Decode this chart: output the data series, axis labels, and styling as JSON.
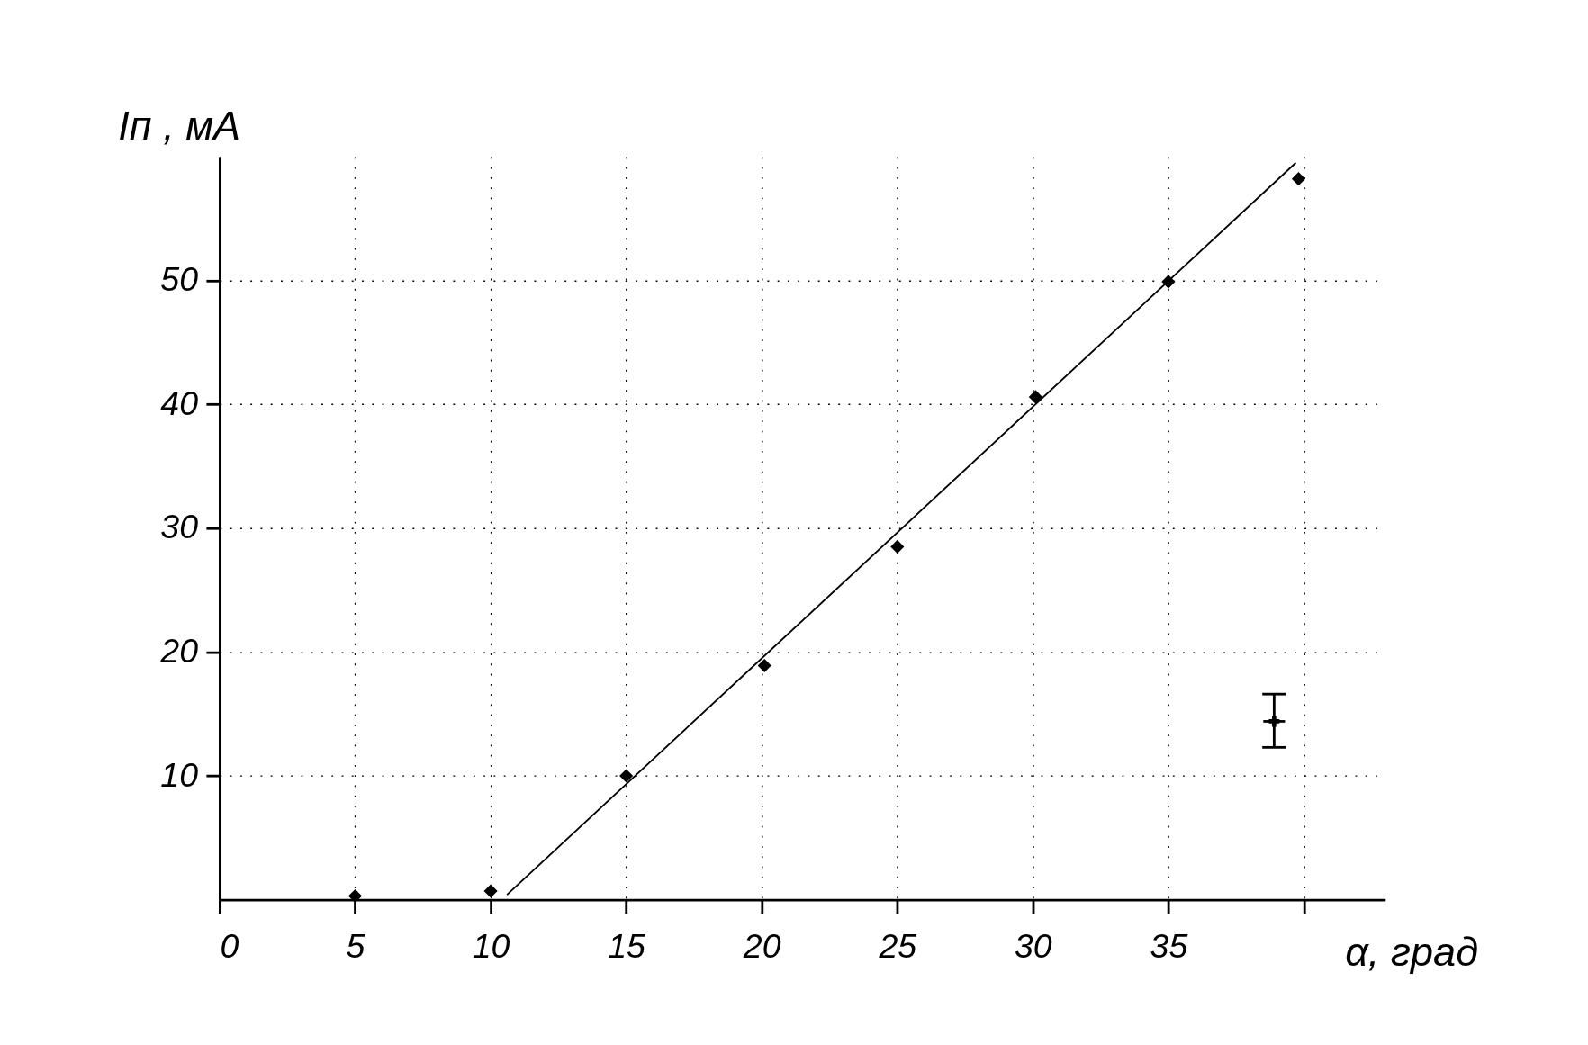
{
  "chart_data": {
    "type": "scatter",
    "xlabel": "α, град",
    "ylabel": "Iп , мА",
    "xlim": [
      0,
      43
    ],
    "ylim": [
      0,
      60
    ],
    "xticks": [
      0,
      5,
      10,
      15,
      20,
      25,
      30,
      35,
      {
        "value": 40,
        "label": null
      }
    ],
    "yticks": [
      10,
      20,
      30,
      40,
      50
    ],
    "grid": true,
    "series": [
      {
        "color": "#000000",
        "marker": "diamond",
        "x": [
          5,
          10,
          15,
          20.1,
          25,
          30.1,
          35,
          39.8
        ],
        "values": [
          0.3,
          0.7,
          10,
          18.9,
          28.5,
          40.6,
          49.9,
          58.2
        ]
      },
      {
        "type": "line",
        "color": "#000000",
        "marker": "none",
        "line_style": "solid",
        "x": [
          10.6,
          39.7
        ],
        "values": [
          0.4,
          59.5
        ]
      },
      {
        "color": "#000000",
        "marker": "cross",
        "x": [
          38.9
        ],
        "values": [
          14.4
        ],
        "errors": [
          [
            12.3,
            16.6
          ]
        ],
        "xerrors": [
          0.4
        ]
      }
    ]
  }
}
